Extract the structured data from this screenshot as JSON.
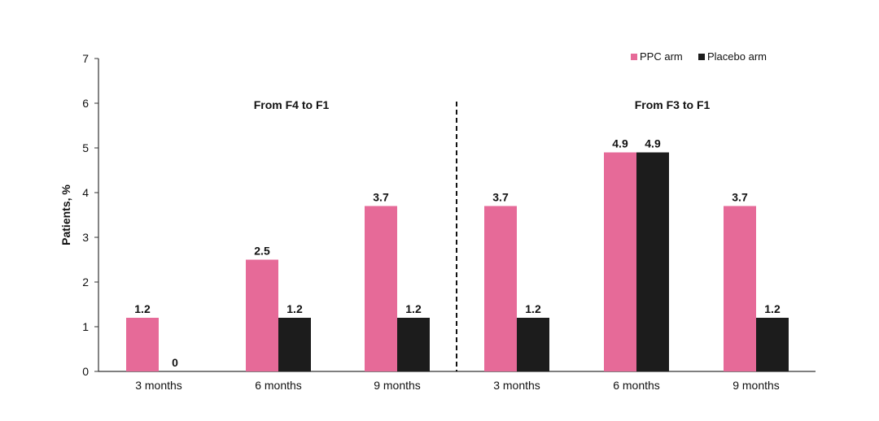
{
  "chart_data": {
    "type": "bar",
    "ylabel": "Patients, %",
    "ylim": [
      0,
      7
    ],
    "yticks": [
      0,
      1,
      2,
      3,
      4,
      5,
      6,
      7
    ],
    "grid": false,
    "legend_position": "top-right",
    "categories": [
      "3 months",
      "6 months",
      "9 months",
      "3 months",
      "6 months",
      "9 months"
    ],
    "groups": [
      {
        "title": "From F4 to F1",
        "category_indices": [
          0,
          1,
          2
        ]
      },
      {
        "title": "From F3 to F1",
        "category_indices": [
          3,
          4,
          5
        ]
      }
    ],
    "series": [
      {
        "name": "PPC arm",
        "color": "#e66a98",
        "values": [
          1.2,
          2.5,
          3.7,
          3.7,
          4.9,
          3.7
        ]
      },
      {
        "name": "Placebo arm",
        "color": "#1c1c1c",
        "values": [
          0,
          1.2,
          1.2,
          1.2,
          4.9,
          1.2
        ]
      }
    ]
  }
}
